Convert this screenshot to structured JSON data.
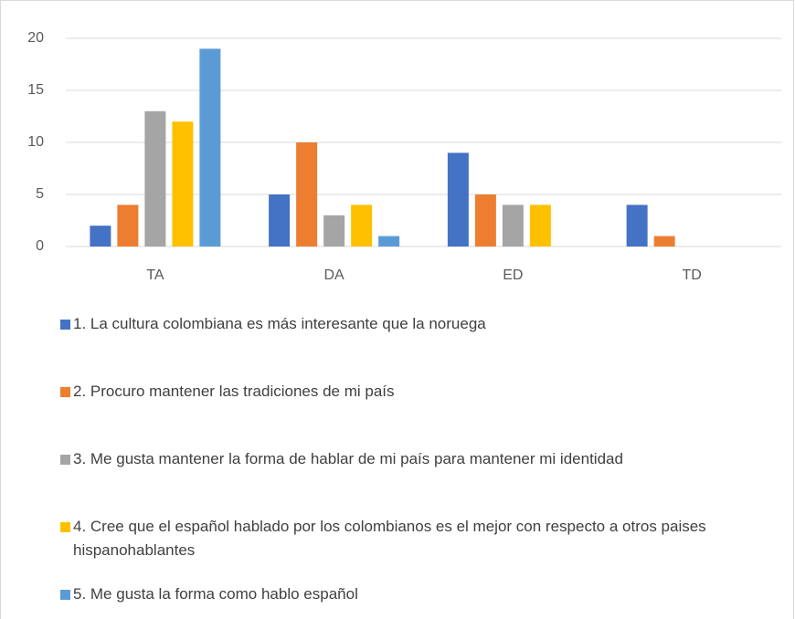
{
  "chart_data": {
    "type": "bar",
    "categories": [
      "TA",
      "DA",
      "ED",
      "TD"
    ],
    "series": [
      {
        "name": "1. La cultura colombiana es más interesante que la noruega",
        "color": "#4472c4",
        "values": [
          2,
          5,
          9,
          4
        ]
      },
      {
        "name": "2. Procuro mantener las tradiciones de mi país",
        "color": "#ed7d31",
        "values": [
          4,
          10,
          5,
          1
        ]
      },
      {
        "name": "3. Me gusta mantener la forma de hablar de mi país para mantener mi identidad",
        "color": "#a5a5a5",
        "values": [
          13,
          3,
          4,
          0
        ]
      },
      {
        "name": "4. Cree que el español hablado por los colombianos es el mejor con respecto a otros paises hispanohablantes",
        "color": "#ffc000",
        "values": [
          12,
          4,
          4,
          0
        ]
      },
      {
        "name": "5. Me gusta la forma como hablo español",
        "color": "#5b9bd5",
        "values": [
          19,
          1,
          0,
          0
        ]
      }
    ],
    "ylim": [
      0,
      20
    ],
    "yticks": [
      0,
      5,
      10,
      15,
      20
    ],
    "grid": true,
    "legend": "bottom"
  }
}
